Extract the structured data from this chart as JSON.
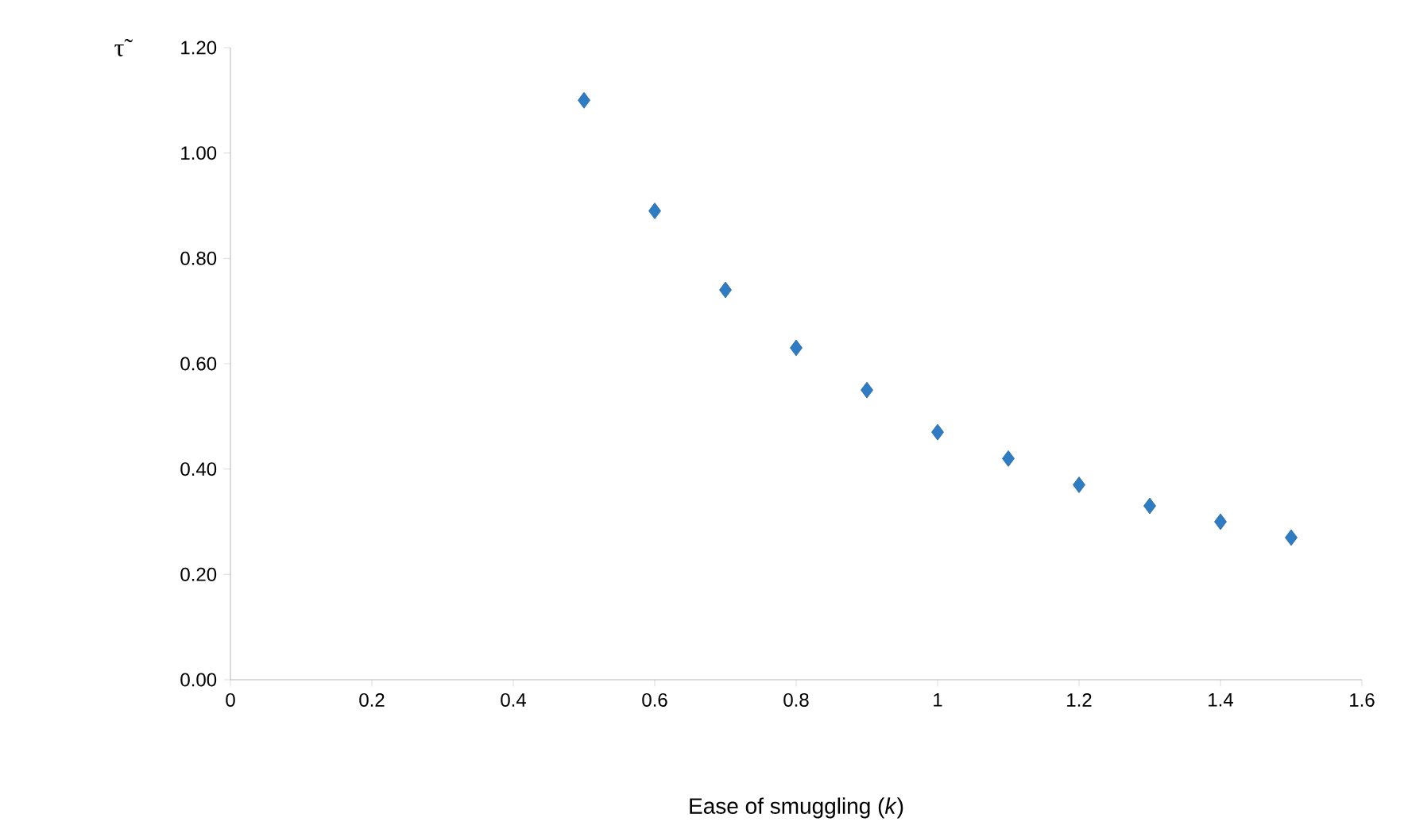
{
  "chart_data": {
    "type": "scatter",
    "xlabel": "Ease of smuggling (*k*)",
    "ylabel": "τ̃",
    "x": [
      0.5,
      0.6,
      0.7,
      0.8,
      0.9,
      1.0,
      1.1,
      1.2,
      1.3,
      1.4,
      1.5
    ],
    "values": [
      1.1,
      0.89,
      0.74,
      0.63,
      0.55,
      0.47,
      0.42,
      0.37,
      0.33,
      0.3,
      0.27
    ],
    "color": "#2e7dc4",
    "marker": "diamond",
    "xlim": [
      0,
      1.6
    ],
    "xticks": [
      0,
      0.2,
      0.4,
      0.6,
      0.8,
      1,
      1.2,
      1.4,
      1.6
    ],
    "ylim": [
      0,
      1.2
    ],
    "yticks": [
      {
        "value": 0,
        "label": "0.00"
      },
      {
        "value": 0.2,
        "label": "0.20"
      },
      {
        "value": 0.4,
        "label": "0.40"
      },
      {
        "value": 0.6,
        "label": "0.60"
      },
      {
        "value": 0.8,
        "label": "0.80"
      },
      {
        "value": 1.0,
        "label": "1.00"
      },
      {
        "value": 1.2,
        "label": "1.20"
      }
    ]
  }
}
